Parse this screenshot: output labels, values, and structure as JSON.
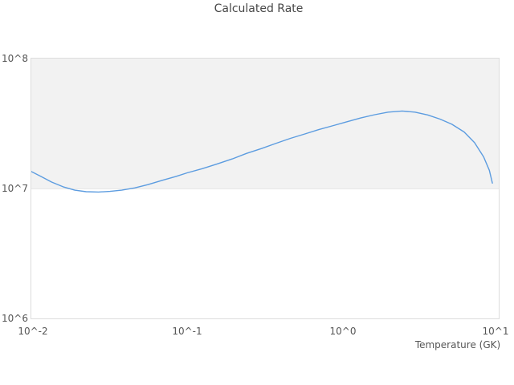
{
  "title": "Calculated Rate",
  "axes": {
    "x_label": "Temperature (GK)",
    "x_ticks": [
      "10^-2",
      "10^-1",
      "10^0",
      "10^1"
    ],
    "y_ticks": [
      "10^8",
      "10^7",
      "10^6"
    ]
  },
  "colors": {
    "line": "#5c9ce0",
    "band": "#f2f2f2",
    "band_edge": "#e7e7e7",
    "plot_border": "#dcdcdc",
    "title_text": "#474747",
    "tick_text": "#555555",
    "background": "#ffffff"
  },
  "chart_data": {
    "type": "line",
    "title": "Calculated Rate",
    "xlabel": "Temperature (GK)",
    "ylabel": "",
    "x_scale": "log",
    "y_scale": "log",
    "xlim": [
      0.01,
      10
    ],
    "ylim": [
      1000000,
      100000000
    ],
    "grid": "horizontal decade band shading between 1e7 and 1e8; no gridlines",
    "legend_position": "none",
    "series": [
      {
        "name": "Calculated Rate",
        "x": [
          0.01,
          0.0115,
          0.0135,
          0.016,
          0.019,
          0.0225,
          0.027,
          0.032,
          0.038,
          0.046,
          0.056,
          0.07,
          0.085,
          0.1,
          0.125,
          0.155,
          0.195,
          0.24,
          0.3,
          0.37,
          0.46,
          0.57,
          0.7,
          0.87,
          1.05,
          1.3,
          1.6,
          1.95,
          2.4,
          2.9,
          3.5,
          4.2,
          5.0,
          6.0,
          7.0,
          8.0,
          8.7,
          9.1
        ],
        "y": [
          13500000,
          12400000,
          11200000,
          10300000,
          9700000,
          9450000,
          9400000,
          9500000,
          9700000,
          10100000,
          10700000,
          11600000,
          12400000,
          13200000,
          14200000,
          15400000,
          16900000,
          18600000,
          20300000,
          22200000,
          24300000,
          26300000,
          28400000,
          30500000,
          32500000,
          34900000,
          37000000,
          38700000,
          39500000,
          38700000,
          36800000,
          34200000,
          31200000,
          27200000,
          22500000,
          17500000,
          13800000,
          11000000
        ]
      }
    ]
  }
}
